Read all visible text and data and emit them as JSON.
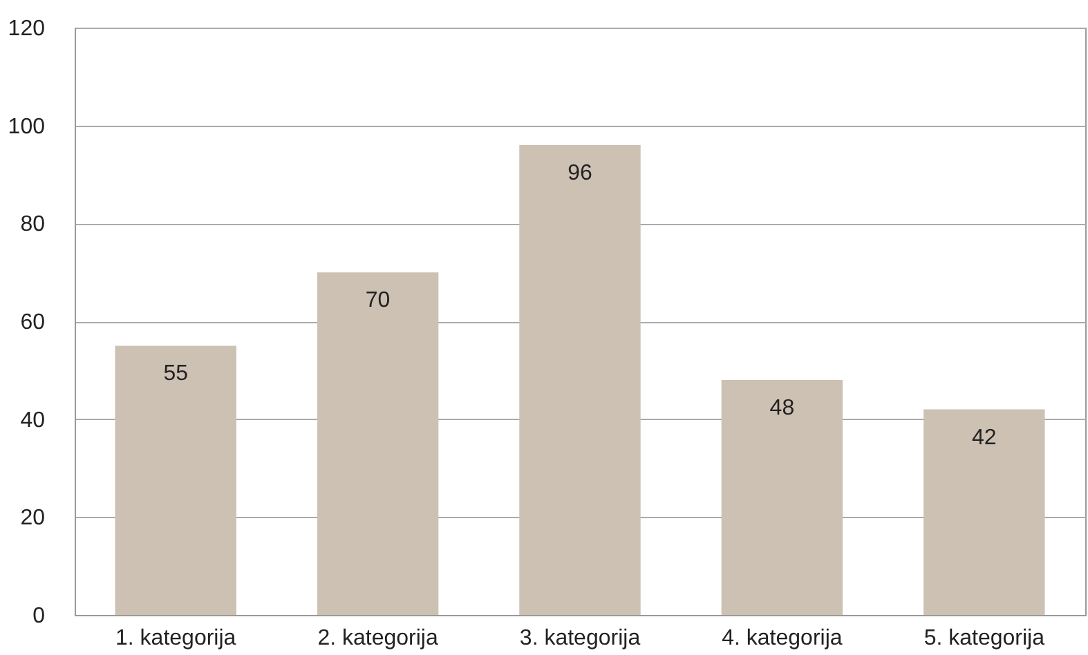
{
  "chart_data": {
    "type": "bar",
    "categories": [
      "1. kategorija",
      "2. kategorija",
      "3. kategorija",
      "4. kategorija",
      "5. kategorija"
    ],
    "values": [
      55,
      70,
      96,
      48,
      42
    ],
    "color": "#cdc1b3",
    "ylim": [
      0,
      120
    ],
    "yticks": [
      0,
      20,
      40,
      60,
      80,
      100,
      120
    ],
    "grid": "y",
    "data_labels": true
  }
}
